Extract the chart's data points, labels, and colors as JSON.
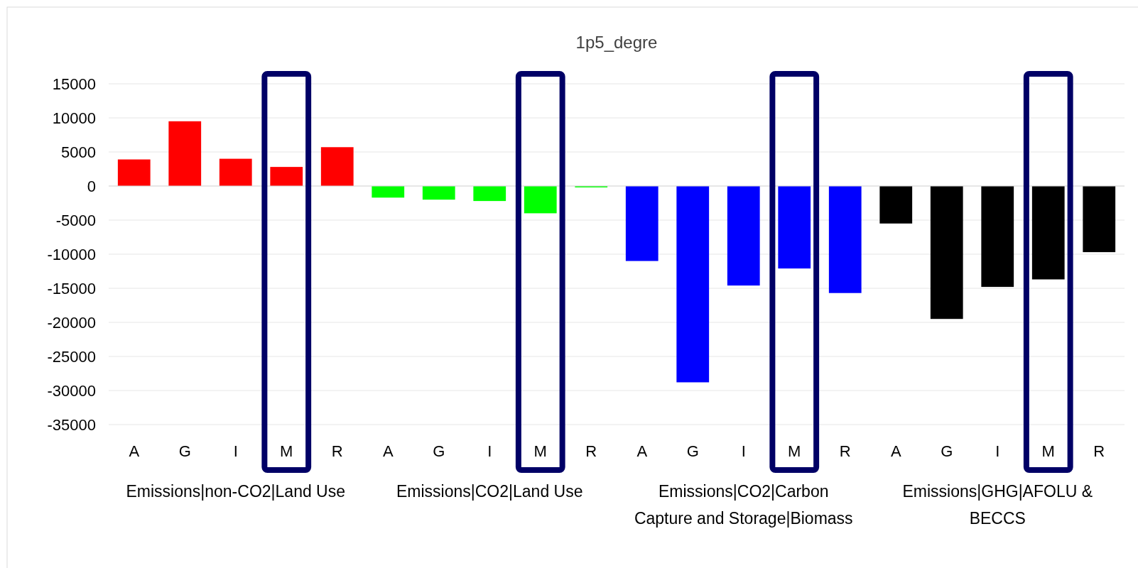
{
  "chart_data": {
    "type": "bar",
    "title": "1p5_degre",
    "categories": [
      "A",
      "G",
      "I",
      "M",
      "R",
      "A",
      "G",
      "I",
      "M",
      "R",
      "A",
      "G",
      "I",
      "M",
      "R",
      "A",
      "G",
      "I",
      "M",
      "R"
    ],
    "values": [
      3900,
      9500,
      4000,
      2800,
      5700,
      -1700,
      -2000,
      -2200,
      -4000,
      -200,
      -11000,
      -28800,
      -14600,
      -12100,
      -15700,
      -5500,
      -19500,
      -14800,
      -13700,
      -9700
    ],
    "colors": [
      "#ff0000",
      "#ff0000",
      "#ff0000",
      "#ff0000",
      "#ff0000",
      "#00ff00",
      "#00ff00",
      "#00ff00",
      "#00ff00",
      "#00ff00",
      "#0000ff",
      "#0000ff",
      "#0000ff",
      "#0000ff",
      "#0000ff",
      "#000000",
      "#000000",
      "#000000",
      "#000000",
      "#000000"
    ],
    "annotations": [
      "Emissions|non-CO2|Land Use",
      "Emissions|CO2|Land Use",
      "Emissions|CO2|Carbon Capture and Storage|Biomass",
      "Emissions|GHG|AFOLU & BECCS"
    ],
    "ylim": [
      -35000,
      15000
    ],
    "yticks": [
      -35000,
      -30000,
      -25000,
      -20000,
      -15000,
      -10000,
      -5000,
      0,
      5000,
      10000,
      15000
    ],
    "grid": "y"
  }
}
